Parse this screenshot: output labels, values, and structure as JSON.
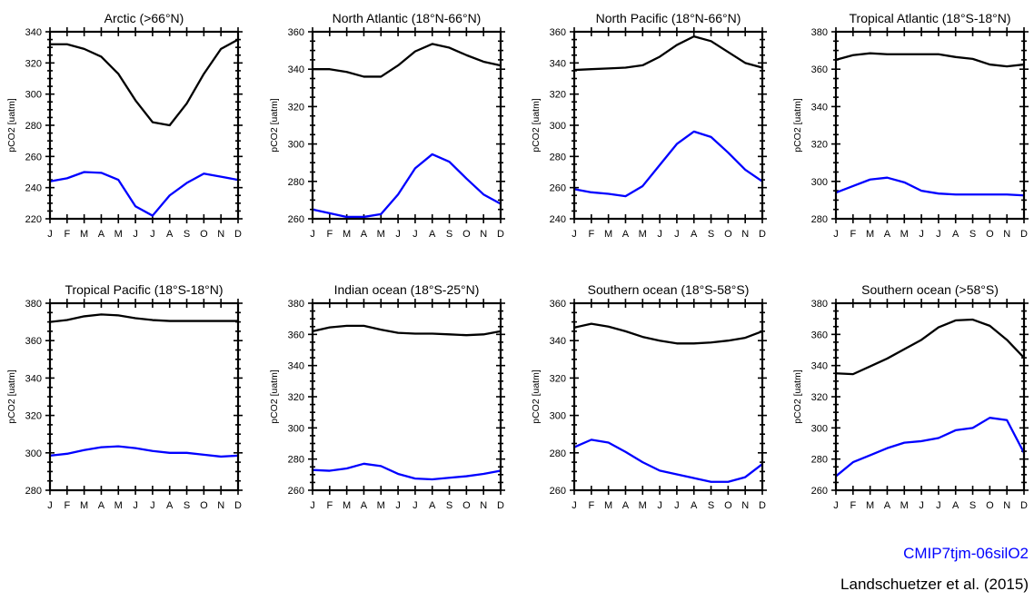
{
  "chart_data": [
    {
      "type": "line",
      "title": "Arctic (>66°N)",
      "xlabel": "",
      "ylabel": "pCO2 [uatm]",
      "categories": [
        "J",
        "F",
        "M",
        "A",
        "M",
        "J",
        "J",
        "A",
        "S",
        "O",
        "N",
        "D"
      ],
      "ylim": [
        220,
        340
      ],
      "yticks": [
        220,
        240,
        260,
        280,
        300,
        320,
        340
      ],
      "series": [
        {
          "name": "Landschuetzer et al. (2015)",
          "color": "#000000",
          "values": [
            332,
            332,
            329,
            324,
            313,
            296,
            282,
            280,
            294,
            313,
            329,
            335
          ]
        },
        {
          "name": "CMIP7tjm-06silO2",
          "color": "#0000ff",
          "values": [
            244,
            246,
            250,
            249.5,
            245,
            228,
            222,
            235,
            243,
            249,
            247,
            245
          ]
        }
      ]
    },
    {
      "type": "line",
      "title": "North Atlantic (18°N-66°N)",
      "xlabel": "",
      "ylabel": "pCO2 [uatm]",
      "categories": [
        "J",
        "F",
        "M",
        "A",
        "M",
        "J",
        "J",
        "A",
        "S",
        "O",
        "N",
        "D"
      ],
      "ylim": [
        260,
        360
      ],
      "yticks": [
        260,
        280,
        300,
        320,
        340,
        360
      ],
      "series": [
        {
          "name": "Landschuetzer et al. (2015)",
          "color": "#000000",
          "values": [
            340,
            340,
            338.5,
            336,
            336,
            342,
            349.5,
            353.5,
            351.5,
            347.5,
            344,
            342
          ]
        },
        {
          "name": "CMIP7tjm-06silO2",
          "color": "#0000ff",
          "values": [
            265,
            263,
            261,
            261,
            262.5,
            273,
            287,
            294.5,
            290.5,
            281.5,
            273,
            268
          ]
        }
      ]
    },
    {
      "type": "line",
      "title": "North Pacific (18°N-66°N)",
      "xlabel": "",
      "ylabel": "pCO2 [uatm]",
      "categories": [
        "J",
        "F",
        "M",
        "A",
        "M",
        "J",
        "J",
        "A",
        "S",
        "O",
        "N",
        "D"
      ],
      "ylim": [
        240,
        360
      ],
      "yticks": [
        240,
        260,
        280,
        300,
        320,
        340,
        360
      ],
      "series": [
        {
          "name": "Landschuetzer et al. (2015)",
          "color": "#000000",
          "values": [
            335.5,
            336,
            336.5,
            337,
            338.5,
            344,
            351.5,
            357,
            354,
            347,
            340,
            337
          ]
        },
        {
          "name": "CMIP7tjm-06silO2",
          "color": "#0000ff",
          "values": [
            259,
            257,
            256,
            254.5,
            261,
            274.5,
            288,
            296,
            292.5,
            282.5,
            271.5,
            264
          ]
        }
      ]
    },
    {
      "type": "line",
      "title": "Tropical Atlantic (18°S-18°N)",
      "xlabel": "",
      "ylabel": "pCO2 [uatm]",
      "categories": [
        "J",
        "F",
        "M",
        "A",
        "M",
        "J",
        "J",
        "A",
        "S",
        "O",
        "N",
        "D"
      ],
      "ylim": [
        280,
        380
      ],
      "yticks": [
        280,
        300,
        320,
        340,
        360,
        380
      ],
      "series": [
        {
          "name": "Landschuetzer et al. (2015)",
          "color": "#000000",
          "values": [
            365,
            367.5,
            368.5,
            368,
            368,
            368,
            368,
            366.5,
            365.5,
            362.5,
            361.5,
            362.5
          ]
        },
        {
          "name": "CMIP7tjm-06silO2",
          "color": "#0000ff",
          "values": [
            294,
            297.5,
            301,
            302,
            299.5,
            295,
            293.5,
            293,
            293,
            293,
            293,
            292.5
          ]
        }
      ]
    },
    {
      "type": "line",
      "title": "Tropical Pacific (18°S-18°N)",
      "xlabel": "",
      "ylabel": "pCO2 [uatm]",
      "categories": [
        "J",
        "F",
        "M",
        "A",
        "M",
        "J",
        "J",
        "A",
        "S",
        "O",
        "N",
        "D"
      ],
      "ylim": [
        280,
        380
      ],
      "yticks": [
        280,
        300,
        320,
        340,
        360,
        380
      ],
      "series": [
        {
          "name": "Landschuetzer et al. (2015)",
          "color": "#000000",
          "values": [
            370,
            371,
            373,
            374,
            373.5,
            372,
            371,
            370.5,
            370.5,
            370.5,
            370.5,
            370.5
          ]
        },
        {
          "name": "CMIP7tjm-06silO2",
          "color": "#0000ff",
          "values": [
            298.5,
            299.5,
            301.5,
            303,
            303.5,
            302.5,
            301,
            300,
            300,
            299,
            298,
            298.5
          ]
        }
      ]
    },
    {
      "type": "line",
      "title": "Indian ocean (18°S-25°N)",
      "xlabel": "",
      "ylabel": "pCO2 [uatm]",
      "categories": [
        "J",
        "F",
        "M",
        "A",
        "M",
        "J",
        "J",
        "A",
        "S",
        "O",
        "N",
        "D"
      ],
      "ylim": [
        260,
        380
      ],
      "yticks": [
        260,
        280,
        300,
        320,
        340,
        360,
        380
      ],
      "series": [
        {
          "name": "Landschuetzer et al. (2015)",
          "color": "#000000",
          "values": [
            362,
            364.5,
            365.5,
            365.5,
            363,
            361,
            360.5,
            360.5,
            360,
            359.5,
            360,
            362
          ]
        },
        {
          "name": "CMIP7tjm-06silO2",
          "color": "#0000ff",
          "values": [
            273,
            272.5,
            274,
            277,
            275.5,
            270.5,
            267.5,
            267,
            268,
            269,
            270.5,
            272.5
          ]
        }
      ]
    },
    {
      "type": "line",
      "title": "Southern ocean (18°S-58°S)",
      "xlabel": "",
      "ylabel": "pCO2 [uatm]",
      "categories": [
        "J",
        "F",
        "M",
        "A",
        "M",
        "J",
        "J",
        "A",
        "S",
        "O",
        "N",
        "D"
      ],
      "ylim": [
        260,
        360
      ],
      "yticks": [
        260,
        280,
        300,
        320,
        340,
        360
      ],
      "series": [
        {
          "name": "Landschuetzer et al. (2015)",
          "color": "#000000",
          "values": [
            347,
            349,
            347.5,
            345,
            342,
            340,
            338.5,
            338.5,
            339,
            340,
            341.5,
            345
          ]
        },
        {
          "name": "CMIP7tjm-06silO2",
          "color": "#0000ff",
          "values": [
            283,
            287,
            285.5,
            280.5,
            275,
            270.5,
            268.5,
            266.5,
            264.5,
            264.5,
            267,
            274
          ]
        }
      ]
    },
    {
      "type": "line",
      "title": "Southern ocean (>58°S)",
      "xlabel": "",
      "ylabel": "pCO2 [uatm]",
      "categories": [
        "J",
        "F",
        "M",
        "A",
        "M",
        "J",
        "J",
        "A",
        "S",
        "O",
        "N",
        "D"
      ],
      "ylim": [
        260,
        380
      ],
      "yticks": [
        260,
        280,
        300,
        320,
        340,
        360,
        380
      ],
      "series": [
        {
          "name": "Landschuetzer et al. (2015)",
          "color": "#000000",
          "values": [
            335,
            334.5,
            339.5,
            344.5,
            350.5,
            356.5,
            364.5,
            369,
            369.5,
            365.5,
            356.5,
            345
          ]
        },
        {
          "name": "CMIP7tjm-06silO2",
          "color": "#0000ff",
          "values": [
            269,
            278,
            282.5,
            287,
            290.5,
            291.5,
            293.5,
            298.5,
            300,
            306.5,
            305,
            284
          ]
        }
      ]
    }
  ],
  "legend": {
    "model": {
      "label": "CMIP7tjm-06silO2",
      "color": "#0000ff"
    },
    "obs": {
      "label": "Landschuetzer et al. (2015)",
      "color": "#000000"
    }
  }
}
